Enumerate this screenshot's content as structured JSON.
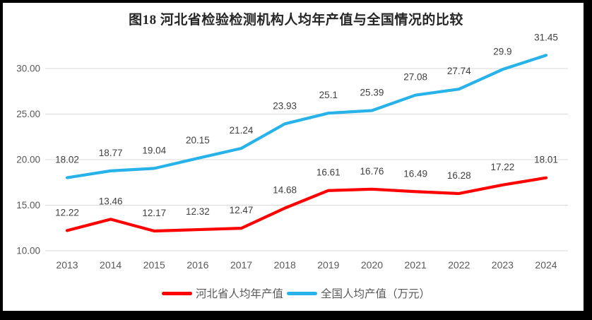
{
  "title": "图18 河北省检验检测机构人均年产值与全国情况的比较",
  "chart_data": {
    "type": "line",
    "categories": [
      "2013",
      "2014",
      "2015",
      "2016",
      "2017",
      "2018",
      "2019",
      "2020",
      "2021",
      "2022",
      "2023",
      "2024"
    ],
    "series": [
      {
        "name": "河北省人均年产值",
        "color": "#FF0000",
        "values": [
          12.22,
          13.46,
          12.17,
          12.32,
          12.47,
          14.68,
          16.61,
          16.76,
          16.49,
          16.28,
          17.22,
          18.01
        ]
      },
      {
        "name": "全国人均产值（万元）",
        "color": "#27B2EA",
        "values": [
          18.02,
          18.77,
          19.04,
          20.15,
          21.24,
          23.93,
          25.1,
          25.39,
          27.08,
          27.74,
          29.9,
          31.45
        ]
      }
    ],
    "y_ticks": [
      "10.00",
      "15.00",
      "20.00",
      "25.00",
      "30.00"
    ],
    "ylim": [
      10,
      32.5
    ],
    "xlabel": "",
    "ylabel": "",
    "grid": true,
    "legend_position": "bottom",
    "data_labels": true,
    "grid_color": "#D9D9D9",
    "axis_color": "#595959",
    "label_color": "#404040",
    "title_color": "#262626",
    "frame_color": "#000000"
  }
}
